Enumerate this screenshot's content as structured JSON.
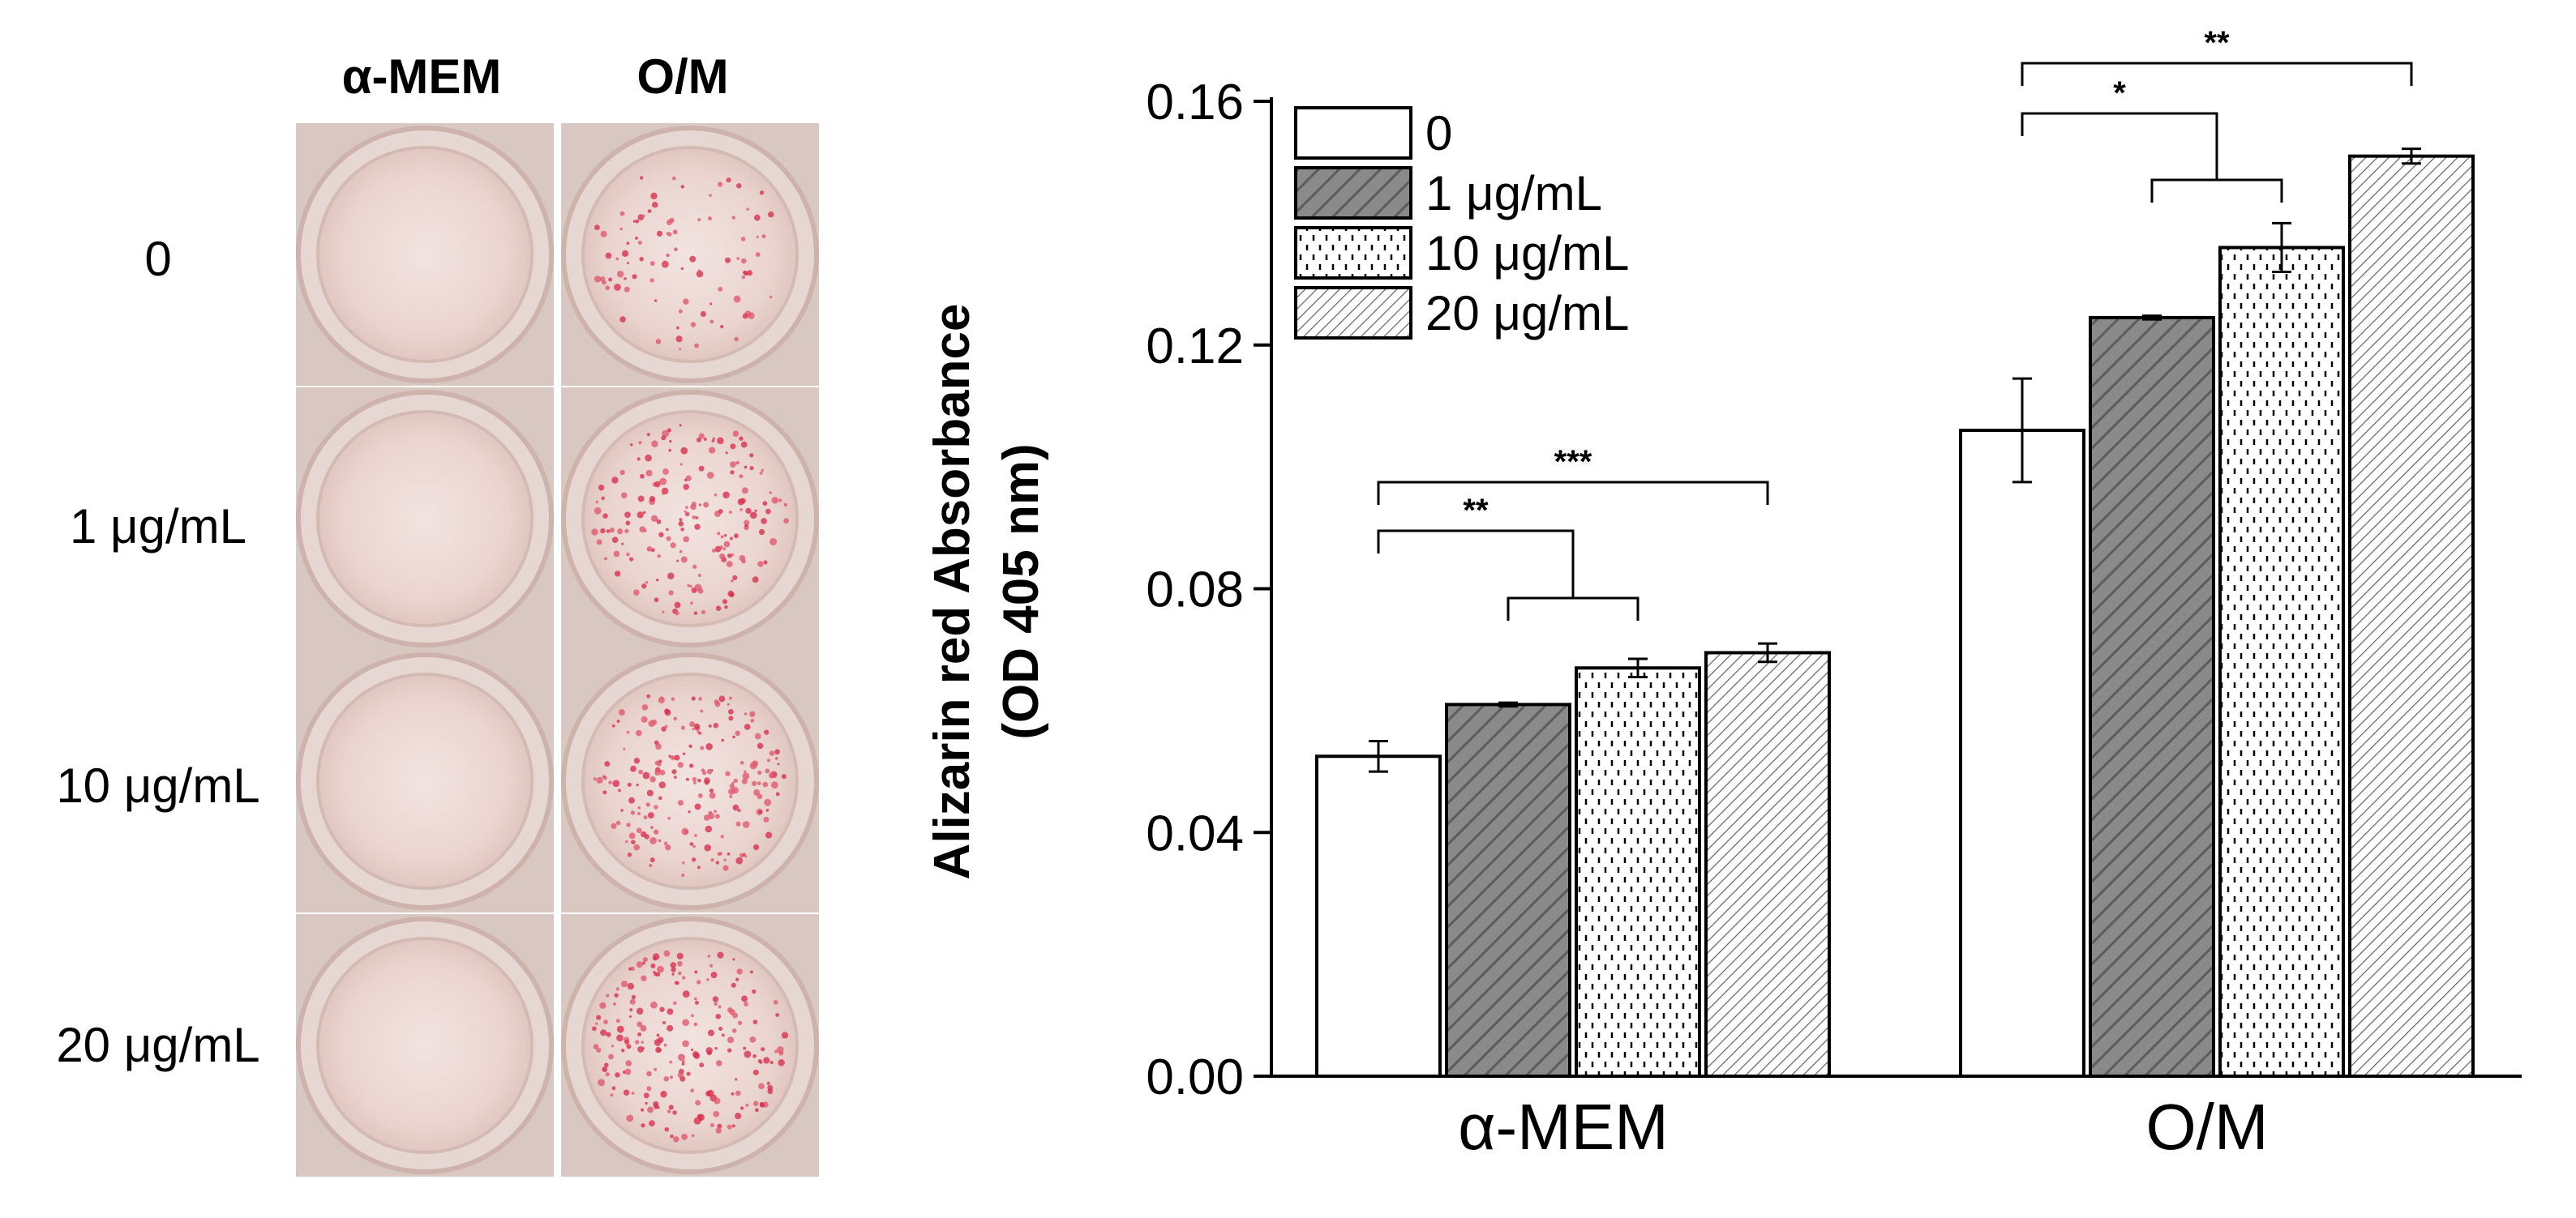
{
  "photo_panel": {
    "column_headers": [
      "α-MEM",
      "O/M"
    ],
    "row_labels": [
      "0",
      "1 μg/mL",
      "10 μg/mL",
      "20 μg/mL"
    ]
  },
  "chart_data": {
    "type": "bar",
    "title": "",
    "categories": [
      "α-MEM",
      "O/M"
    ],
    "ylabel_line1": "Alizarin red Absorbance",
    "ylabel_line2": "(OD 405 nm)",
    "xlabel": "",
    "ylim": [
      0,
      0.16
    ],
    "yticks": [
      "0.00",
      "0.04",
      "0.08",
      "0.12",
      "0.16"
    ],
    "ytick_values": [
      0,
      0.04,
      0.08,
      0.12,
      0.16
    ],
    "legend_position": "top-left",
    "grid": false,
    "series": [
      {
        "name": "0",
        "values": [
          0.0525,
          0.106
        ],
        "errors": [
          0.0025,
          0.0085
        ],
        "pattern": "white"
      },
      {
        "name": "1 μg/mL",
        "values": [
          0.061,
          0.1245
        ],
        "errors": [
          0.0003,
          0.0003
        ],
        "pattern": "dark-hatch"
      },
      {
        "name": "10 μg/mL",
        "values": [
          0.067,
          0.136
        ],
        "errors": [
          0.0015,
          0.004
        ],
        "pattern": "dots"
      },
      {
        "name": "20 μg/mL",
        "values": [
          0.0695,
          0.151
        ],
        "errors": [
          0.0015,
          0.0012
        ],
        "pattern": "light-hatch"
      }
    ],
    "significance": [
      {
        "category": "α-MEM",
        "label": "**",
        "type": "group",
        "from_series": 0,
        "to_series": [
          1,
          2
        ]
      },
      {
        "category": "α-MEM",
        "label": "***",
        "type": "pair",
        "from_series": 0,
        "to_series": 3
      },
      {
        "category": "O/M",
        "label": "*",
        "type": "group",
        "from_series": 0,
        "to_series": [
          1,
          2
        ]
      },
      {
        "category": "O/M",
        "label": "**",
        "type": "pair",
        "from_series": 0,
        "to_series": 3
      }
    ]
  }
}
